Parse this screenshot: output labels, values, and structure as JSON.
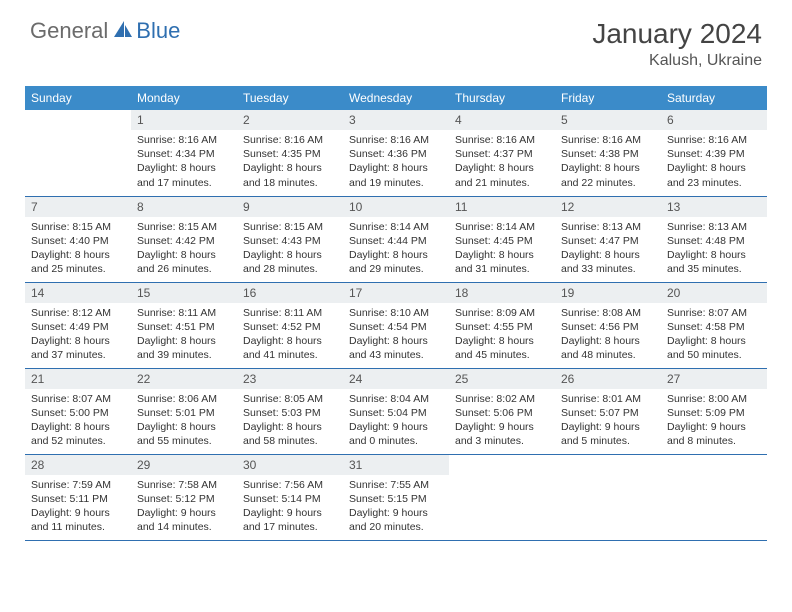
{
  "logo": {
    "text1": "General",
    "text2": "Blue"
  },
  "title": "January 2024",
  "location": "Kalush, Ukraine",
  "colors": {
    "header_bg": "#3b8bc9",
    "accent": "#2f6fb0",
    "daynum_bg": "#eceff1",
    "text": "#333333",
    "logo_gray": "#6b6b6b"
  },
  "weekdays": [
    "Sunday",
    "Monday",
    "Tuesday",
    "Wednesday",
    "Thursday",
    "Friday",
    "Saturday"
  ],
  "weeks": [
    [
      {
        "n": "",
        "sr": "",
        "ss": "",
        "dl": ""
      },
      {
        "n": "1",
        "sr": "Sunrise: 8:16 AM",
        "ss": "Sunset: 4:34 PM",
        "dl": "Daylight: 8 hours and 17 minutes."
      },
      {
        "n": "2",
        "sr": "Sunrise: 8:16 AM",
        "ss": "Sunset: 4:35 PM",
        "dl": "Daylight: 8 hours and 18 minutes."
      },
      {
        "n": "3",
        "sr": "Sunrise: 8:16 AM",
        "ss": "Sunset: 4:36 PM",
        "dl": "Daylight: 8 hours and 19 minutes."
      },
      {
        "n": "4",
        "sr": "Sunrise: 8:16 AM",
        "ss": "Sunset: 4:37 PM",
        "dl": "Daylight: 8 hours and 21 minutes."
      },
      {
        "n": "5",
        "sr": "Sunrise: 8:16 AM",
        "ss": "Sunset: 4:38 PM",
        "dl": "Daylight: 8 hours and 22 minutes."
      },
      {
        "n": "6",
        "sr": "Sunrise: 8:16 AM",
        "ss": "Sunset: 4:39 PM",
        "dl": "Daylight: 8 hours and 23 minutes."
      }
    ],
    [
      {
        "n": "7",
        "sr": "Sunrise: 8:15 AM",
        "ss": "Sunset: 4:40 PM",
        "dl": "Daylight: 8 hours and 25 minutes."
      },
      {
        "n": "8",
        "sr": "Sunrise: 8:15 AM",
        "ss": "Sunset: 4:42 PM",
        "dl": "Daylight: 8 hours and 26 minutes."
      },
      {
        "n": "9",
        "sr": "Sunrise: 8:15 AM",
        "ss": "Sunset: 4:43 PM",
        "dl": "Daylight: 8 hours and 28 minutes."
      },
      {
        "n": "10",
        "sr": "Sunrise: 8:14 AM",
        "ss": "Sunset: 4:44 PM",
        "dl": "Daylight: 8 hours and 29 minutes."
      },
      {
        "n": "11",
        "sr": "Sunrise: 8:14 AM",
        "ss": "Sunset: 4:45 PM",
        "dl": "Daylight: 8 hours and 31 minutes."
      },
      {
        "n": "12",
        "sr": "Sunrise: 8:13 AM",
        "ss": "Sunset: 4:47 PM",
        "dl": "Daylight: 8 hours and 33 minutes."
      },
      {
        "n": "13",
        "sr": "Sunrise: 8:13 AM",
        "ss": "Sunset: 4:48 PM",
        "dl": "Daylight: 8 hours and 35 minutes."
      }
    ],
    [
      {
        "n": "14",
        "sr": "Sunrise: 8:12 AM",
        "ss": "Sunset: 4:49 PM",
        "dl": "Daylight: 8 hours and 37 minutes."
      },
      {
        "n": "15",
        "sr": "Sunrise: 8:11 AM",
        "ss": "Sunset: 4:51 PM",
        "dl": "Daylight: 8 hours and 39 minutes."
      },
      {
        "n": "16",
        "sr": "Sunrise: 8:11 AM",
        "ss": "Sunset: 4:52 PM",
        "dl": "Daylight: 8 hours and 41 minutes."
      },
      {
        "n": "17",
        "sr": "Sunrise: 8:10 AM",
        "ss": "Sunset: 4:54 PM",
        "dl": "Daylight: 8 hours and 43 minutes."
      },
      {
        "n": "18",
        "sr": "Sunrise: 8:09 AM",
        "ss": "Sunset: 4:55 PM",
        "dl": "Daylight: 8 hours and 45 minutes."
      },
      {
        "n": "19",
        "sr": "Sunrise: 8:08 AM",
        "ss": "Sunset: 4:56 PM",
        "dl": "Daylight: 8 hours and 48 minutes."
      },
      {
        "n": "20",
        "sr": "Sunrise: 8:07 AM",
        "ss": "Sunset: 4:58 PM",
        "dl": "Daylight: 8 hours and 50 minutes."
      }
    ],
    [
      {
        "n": "21",
        "sr": "Sunrise: 8:07 AM",
        "ss": "Sunset: 5:00 PM",
        "dl": "Daylight: 8 hours and 52 minutes."
      },
      {
        "n": "22",
        "sr": "Sunrise: 8:06 AM",
        "ss": "Sunset: 5:01 PM",
        "dl": "Daylight: 8 hours and 55 minutes."
      },
      {
        "n": "23",
        "sr": "Sunrise: 8:05 AM",
        "ss": "Sunset: 5:03 PM",
        "dl": "Daylight: 8 hours and 58 minutes."
      },
      {
        "n": "24",
        "sr": "Sunrise: 8:04 AM",
        "ss": "Sunset: 5:04 PM",
        "dl": "Daylight: 9 hours and 0 minutes."
      },
      {
        "n": "25",
        "sr": "Sunrise: 8:02 AM",
        "ss": "Sunset: 5:06 PM",
        "dl": "Daylight: 9 hours and 3 minutes."
      },
      {
        "n": "26",
        "sr": "Sunrise: 8:01 AM",
        "ss": "Sunset: 5:07 PM",
        "dl": "Daylight: 9 hours and 5 minutes."
      },
      {
        "n": "27",
        "sr": "Sunrise: 8:00 AM",
        "ss": "Sunset: 5:09 PM",
        "dl": "Daylight: 9 hours and 8 minutes."
      }
    ],
    [
      {
        "n": "28",
        "sr": "Sunrise: 7:59 AM",
        "ss": "Sunset: 5:11 PM",
        "dl": "Daylight: 9 hours and 11 minutes."
      },
      {
        "n": "29",
        "sr": "Sunrise: 7:58 AM",
        "ss": "Sunset: 5:12 PM",
        "dl": "Daylight: 9 hours and 14 minutes."
      },
      {
        "n": "30",
        "sr": "Sunrise: 7:56 AM",
        "ss": "Sunset: 5:14 PM",
        "dl": "Daylight: 9 hours and 17 minutes."
      },
      {
        "n": "31",
        "sr": "Sunrise: 7:55 AM",
        "ss": "Sunset: 5:15 PM",
        "dl": "Daylight: 9 hours and 20 minutes."
      },
      {
        "n": "",
        "sr": "",
        "ss": "",
        "dl": ""
      },
      {
        "n": "",
        "sr": "",
        "ss": "",
        "dl": ""
      },
      {
        "n": "",
        "sr": "",
        "ss": "",
        "dl": ""
      }
    ]
  ]
}
